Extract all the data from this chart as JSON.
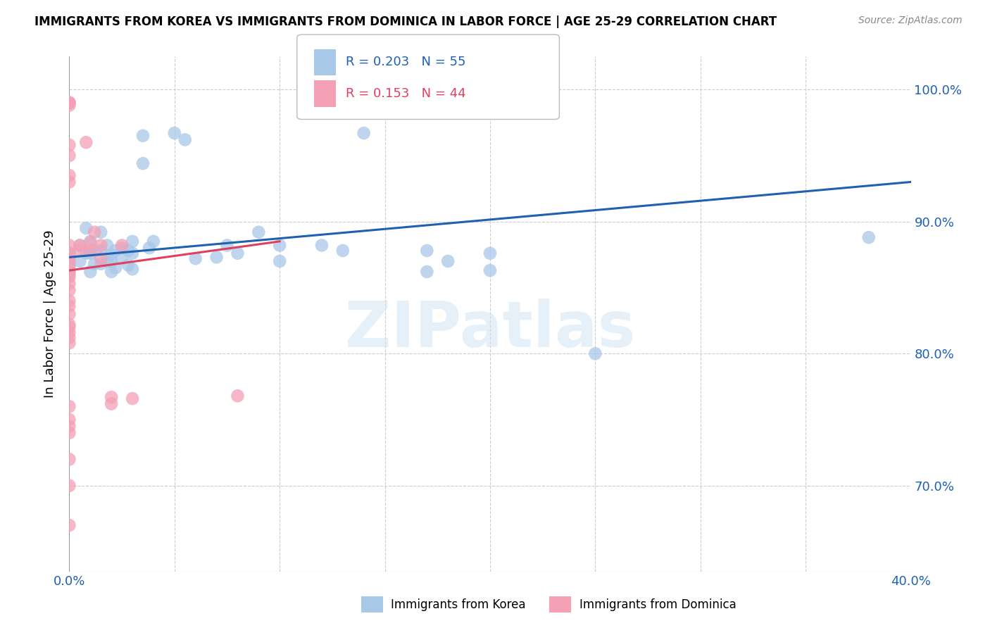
{
  "title": "IMMIGRANTS FROM KOREA VS IMMIGRANTS FROM DOMINICA IN LABOR FORCE | AGE 25-29 CORRELATION CHART",
  "source_text": "Source: ZipAtlas.com",
  "ylabel": "In Labor Force | Age 25-29",
  "legend_korea": "Immigrants from Korea",
  "legend_dominica": "Immigrants from Dominica",
  "korea_R": 0.203,
  "korea_N": 55,
  "dominica_R": 0.153,
  "dominica_N": 44,
  "korea_color": "#a8c8e8",
  "dominica_color": "#f4a0b5",
  "korea_line_color": "#2060b0",
  "dominica_line_color": "#e04060",
  "xlim": [
    0.0,
    0.4
  ],
  "ylim": [
    0.635,
    1.025
  ],
  "ytick_positions": [
    0.7,
    0.8,
    0.9,
    1.0
  ],
  "ytick_labels": [
    "70.0%",
    "80.0%",
    "90.0%",
    "100.0%"
  ],
  "xtick_positions": [
    0.0,
    0.05,
    0.1,
    0.15,
    0.2,
    0.25,
    0.3,
    0.35,
    0.4
  ],
  "xtick_labels": [
    "0.0%",
    "",
    "",
    "",
    "",
    "",
    "",
    "",
    "40.0%"
  ],
  "background_color": "#ffffff",
  "watermark": "ZIPatlas",
  "korea_scatter_x": [
    0.0,
    0.0,
    0.0,
    0.0,
    0.0,
    0.0,
    0.005,
    0.005,
    0.008,
    0.008,
    0.01,
    0.01,
    0.01,
    0.012,
    0.012,
    0.015,
    0.015,
    0.015,
    0.018,
    0.018,
    0.02,
    0.02,
    0.02,
    0.022,
    0.022,
    0.025,
    0.025,
    0.028,
    0.028,
    0.03,
    0.03,
    0.03,
    0.035,
    0.035,
    0.038,
    0.04,
    0.05,
    0.055,
    0.06,
    0.07,
    0.075,
    0.08,
    0.09,
    0.1,
    0.1,
    0.12,
    0.13,
    0.14,
    0.17,
    0.17,
    0.18,
    0.2,
    0.2,
    0.25,
    0.38
  ],
  "korea_scatter_y": [
    0.876,
    0.873,
    0.87,
    0.866,
    0.863,
    0.86,
    0.882,
    0.87,
    0.895,
    0.876,
    0.885,
    0.876,
    0.862,
    0.878,
    0.868,
    0.892,
    0.878,
    0.868,
    0.882,
    0.87,
    0.875,
    0.87,
    0.862,
    0.878,
    0.865,
    0.88,
    0.872,
    0.878,
    0.867,
    0.885,
    0.876,
    0.864,
    0.965,
    0.944,
    0.88,
    0.885,
    0.967,
    0.962,
    0.872,
    0.873,
    0.882,
    0.876,
    0.892,
    0.882,
    0.87,
    0.882,
    0.878,
    0.967,
    0.878,
    0.862,
    0.87,
    0.876,
    0.863,
    0.8,
    0.888
  ],
  "dominica_scatter_x": [
    0.0,
    0.0,
    0.0,
    0.0,
    0.0,
    0.0,
    0.0,
    0.0,
    0.0,
    0.0,
    0.0,
    0.0,
    0.0,
    0.0,
    0.0,
    0.0,
    0.0,
    0.0,
    0.0,
    0.0,
    0.0,
    0.0,
    0.0,
    0.0,
    0.005,
    0.005,
    0.008,
    0.01,
    0.01,
    0.012,
    0.015,
    0.015,
    0.02,
    0.02,
    0.025,
    0.03,
    0.08,
    0.0,
    0.0,
    0.0,
    0.0,
    0.0,
    0.0,
    0.0
  ],
  "dominica_scatter_y": [
    0.99,
    0.99,
    0.99,
    0.988,
    0.958,
    0.95,
    0.935,
    0.93,
    0.882,
    0.876,
    0.872,
    0.868,
    0.862,
    0.858,
    0.853,
    0.848,
    0.84,
    0.836,
    0.83,
    0.822,
    0.816,
    0.812,
    0.75,
    0.745,
    0.882,
    0.878,
    0.96,
    0.884,
    0.878,
    0.892,
    0.882,
    0.872,
    0.767,
    0.762,
    0.882,
    0.766,
    0.768,
    0.67,
    0.7,
    0.72,
    0.74,
    0.808,
    0.82,
    0.76
  ],
  "korea_trend_x": [
    0.0,
    0.4
  ],
  "korea_trend_y": [
    0.873,
    0.93
  ],
  "dominica_trend_x": [
    0.0,
    0.1
  ],
  "dominica_trend_y": [
    0.863,
    0.885
  ]
}
